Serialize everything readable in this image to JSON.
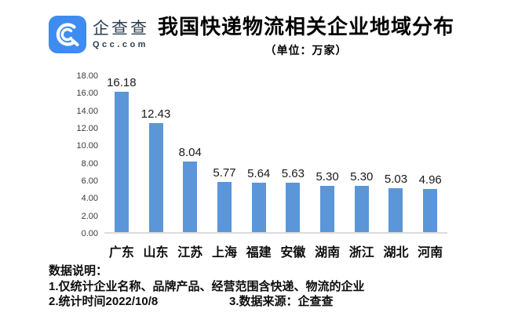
{
  "logo": {
    "name": "企查查",
    "domain": "Qcc.com",
    "brand_color": "#3e8cef"
  },
  "header": {
    "title": "我国快递物流相关企业地域分布",
    "subtitle": "（单位：万家）"
  },
  "chart_data": {
    "type": "bar",
    "title": "我国快递物流相关企业地域分布",
    "unit": "万家",
    "categories": [
      "广东",
      "山东",
      "江苏",
      "上海",
      "福建",
      "安徽",
      "湖南",
      "浙江",
      "湖北",
      "河南"
    ],
    "values": [
      16.18,
      12.43,
      8.04,
      5.77,
      5.64,
      5.63,
      5.3,
      5.3,
      5.03,
      4.96
    ],
    "value_labels": [
      "16.18",
      "12.43",
      "8.04",
      "5.77",
      "5.64",
      "5.63",
      "5.30",
      "5.30",
      "5.03",
      "4.96"
    ],
    "xlabel": "",
    "ylabel": "",
    "ylim": [
      0,
      18
    ],
    "ytick_step": 2,
    "yticks": [
      "18.00",
      "16.00",
      "14.00",
      "12.00",
      "10.00",
      "8.00",
      "6.00",
      "4.00",
      "2.00",
      "0.00"
    ],
    "grid": false,
    "legend": null,
    "bar_color": "#5b96d8",
    "baseline_color": "#dcdcdc"
  },
  "notes": {
    "heading": "数据说明：",
    "line1": "1.仅统计企业名称、品牌产品、经营范围含快递、物流的企业",
    "line2a": "2.统计时间2022/10/8",
    "line2b": "3.数据来源：企查查"
  }
}
